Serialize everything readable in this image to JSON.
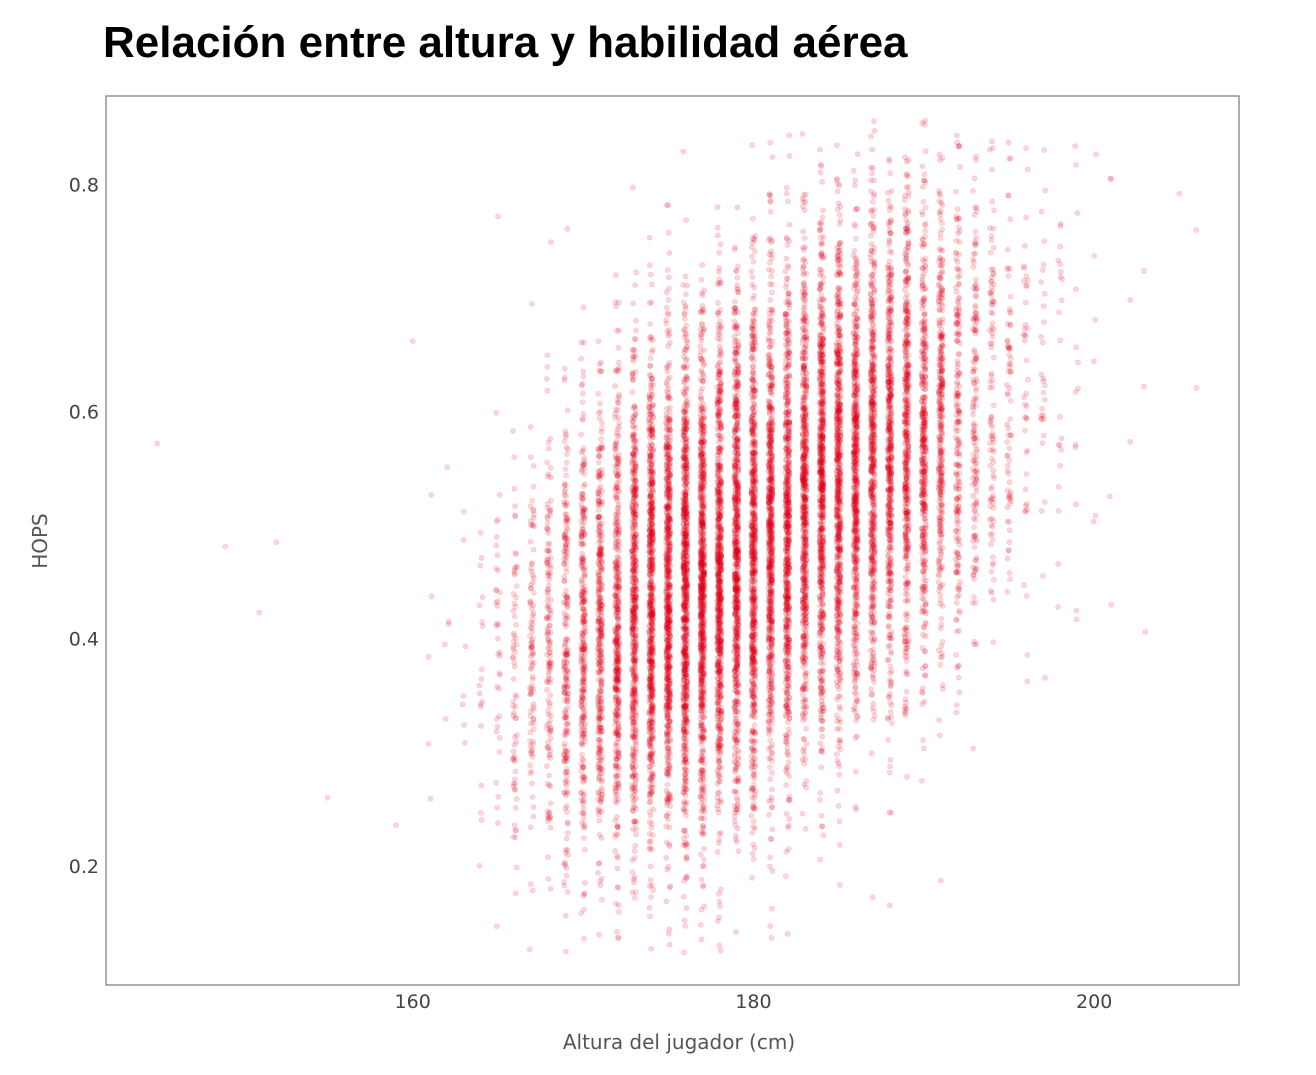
{
  "chart_data": {
    "type": "scatter",
    "title": "Relación entre altura y habilidad aérea",
    "xlabel": "Altura del jugador (cm)",
    "ylabel": "HOPS",
    "xlim": [
      142,
      208.5
    ],
    "ylim": [
      0.095,
      0.878
    ],
    "xticks": [
      160,
      180,
      200
    ],
    "xtick_labels": [
      "160",
      "180",
      "200"
    ],
    "yticks": [
      0.2,
      0.4,
      0.6,
      0.8
    ],
    "ytick_labels": [
      "0.2",
      "0.4",
      "0.6",
      "0.8"
    ],
    "grid": false,
    "legend": "none",
    "point_color": "#e3001b",
    "point_opacity": 0.16,
    "n_points_approx": 14000,
    "x_values": "integer heights 145–206 cm, most dense 172–190",
    "relationship": "positive correlation; HOPS ≈ 0.46 at 175 cm rising to ≈ 0.62 at 192 cm; spread sd ≈ 0.11",
    "clusters": [
      {
        "x_center": 176,
        "y_center": 0.44,
        "sd_x": 4.5,
        "sd_y": 0.105,
        "weight": 0.55
      },
      {
        "x_center": 186,
        "y_center": 0.56,
        "sd_x": 4.5,
        "sd_y": 0.105,
        "weight": 0.45
      }
    ],
    "sample_points": [
      {
        "x": 145,
        "y": 0.572
      },
      {
        "x": 149,
        "y": 0.481
      },
      {
        "x": 151,
        "y": 0.423
      },
      {
        "x": 152,
        "y": 0.485
      },
      {
        "x": 155,
        "y": 0.26
      },
      {
        "x": 160,
        "y": 0.662
      },
      {
        "x": 165,
        "y": 0.772
      },
      {
        "x": 167,
        "y": 0.695
      },
      {
        "x": 172,
        "y": 0.142
      },
      {
        "x": 174,
        "y": 0.127
      },
      {
        "x": 176,
        "y": 0.147
      },
      {
        "x": 178,
        "y": 0.13
      },
      {
        "x": 182,
        "y": 0.14
      },
      {
        "x": 188,
        "y": 0.165
      },
      {
        "x": 191,
        "y": 0.187
      },
      {
        "x": 194,
        "y": 0.838
      },
      {
        "x": 195,
        "y": 0.823
      },
      {
        "x": 196,
        "y": 0.832
      },
      {
        "x": 201,
        "y": 0.805
      },
      {
        "x": 203,
        "y": 0.406
      },
      {
        "x": 205,
        "y": 0.792
      },
      {
        "x": 206,
        "y": 0.76
      },
      {
        "x": 206,
        "y": 0.621
      },
      {
        "x": 201,
        "y": 0.43
      }
    ]
  }
}
